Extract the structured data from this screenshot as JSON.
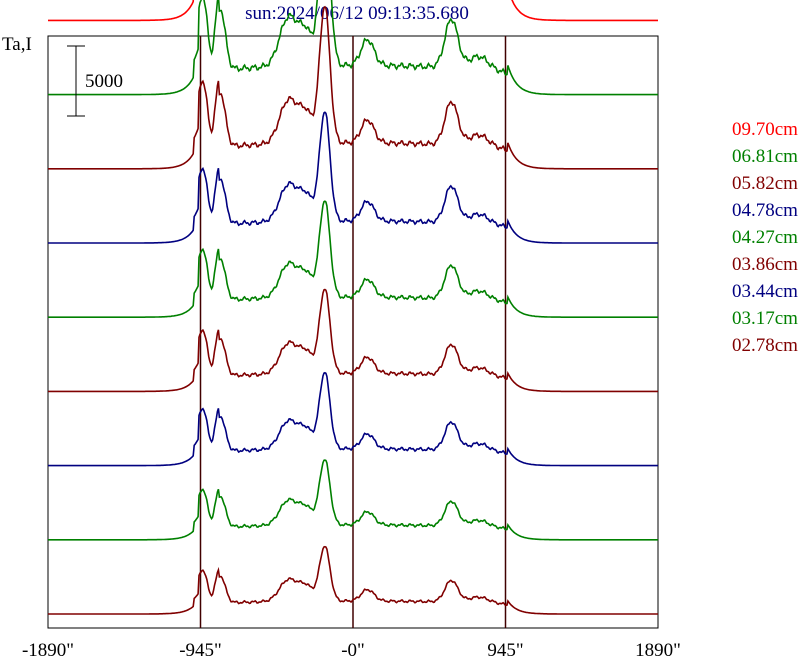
{
  "chart_data": {
    "type": "line",
    "title": "sun:2024/06/12 09:13:35.680",
    "ylabel": "Ta,I",
    "scale_bar_label": "5000",
    "scale_bar_value": 5000,
    "x_ticks": [
      -1890,
      -945,
      0,
      945,
      1890
    ],
    "x_tick_labels": [
      "-1890\"",
      "-945\"",
      "-0\"",
      "945\"",
      "1890\""
    ],
    "xlim": [
      -1890,
      1890
    ],
    "vlines": [
      -945,
      0,
      945
    ],
    "grid": false,
    "legend_placement": "right",
    "offset_step": 5300,
    "series": [
      {
        "name": "09.70cm",
        "color": "#ff0000",
        "rel": 1.0
      },
      {
        "name": "06.81cm",
        "color": "#008000",
        "rel": 0.9
      },
      {
        "name": "05.82cm",
        "color": "#800000",
        "rel": 0.8
      },
      {
        "name": "04.78cm",
        "color": "#000080",
        "rel": 0.68
      },
      {
        "name": "04.27cm",
        "color": "#008000",
        "rel": 0.62
      },
      {
        "name": "03.86cm",
        "color": "#800000",
        "rel": 0.56
      },
      {
        "name": "03.44cm",
        "color": "#000080",
        "rel": 0.52
      },
      {
        "name": "03.17cm",
        "color": "#008000",
        "rel": 0.46
      },
      {
        "name": "02.78cm",
        "color": "#800000",
        "rel": 0.4
      }
    ]
  }
}
